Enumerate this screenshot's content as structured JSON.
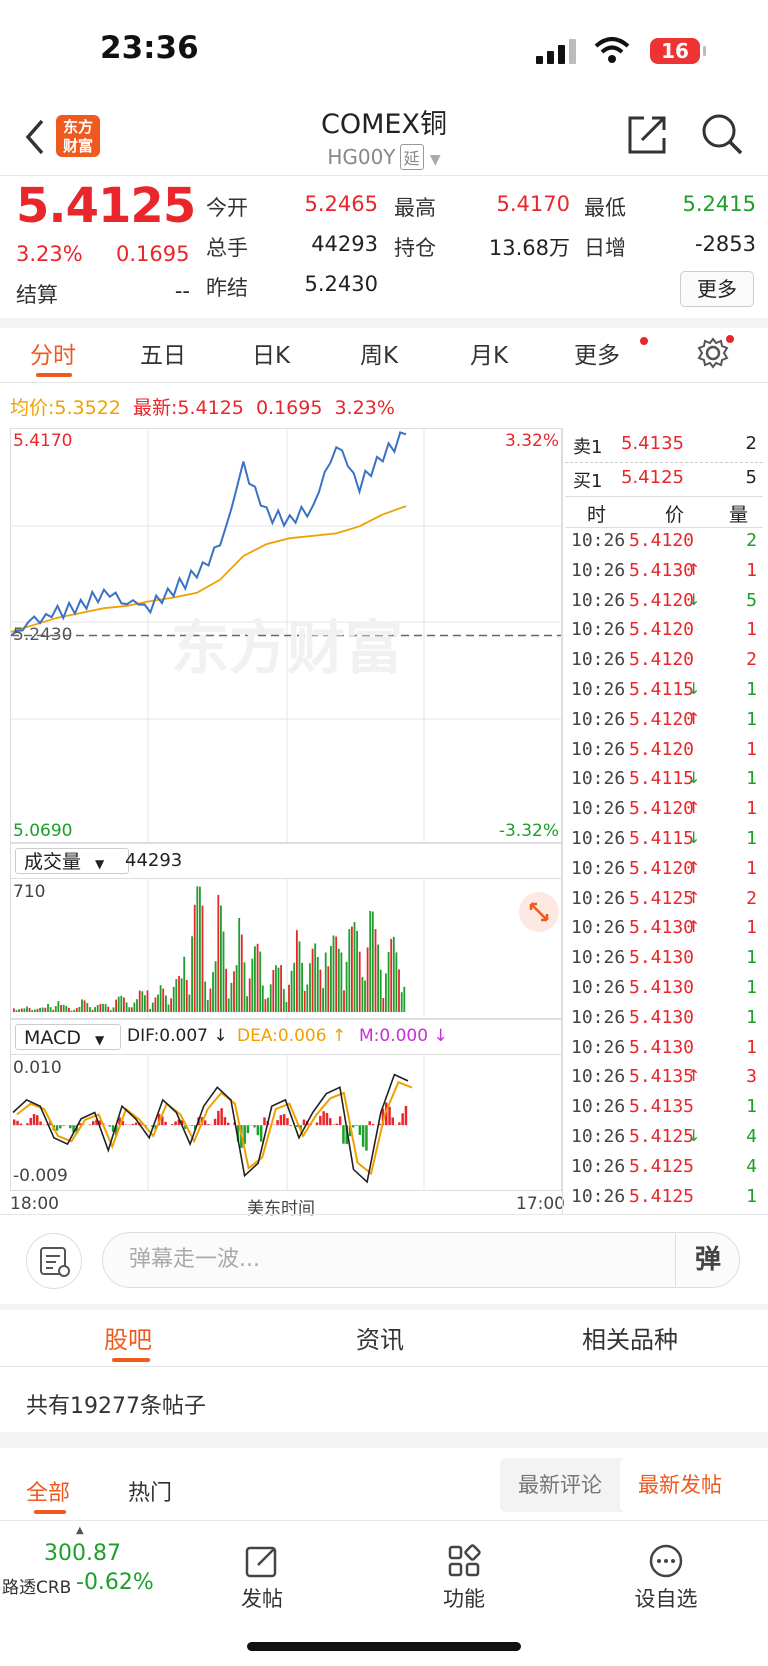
{
  "status": {
    "time": "23:36",
    "battery": "16"
  },
  "header": {
    "logo_line1": "东方",
    "logo_line2": "财富",
    "title": "COMEX铜",
    "code": "HG00Y",
    "tag": "延"
  },
  "quote": {
    "price": "5.4125",
    "change_pct": "3.23%",
    "change": "0.1695",
    "settle_label": "结算",
    "settle_value": "--",
    "fields": [
      {
        "label": "今开",
        "value": "5.2465",
        "color": "#e8262b"
      },
      {
        "label": "最高",
        "value": "5.4170",
        "color": "#e8262b"
      },
      {
        "label": "最低",
        "value": "5.2415",
        "color": "#1e9e2a"
      },
      {
        "label": "总手",
        "value": "44293",
        "color": "#222222"
      },
      {
        "label": "持仓",
        "value": "13.68万",
        "color": "#222222"
      },
      {
        "label": "日增",
        "value": "-2853",
        "color": "#222222"
      },
      {
        "label": "昨结",
        "value": "5.2430",
        "color": "#222222"
      }
    ],
    "more_label": "更多"
  },
  "tabs": [
    "分时",
    "五日",
    "日K",
    "周K",
    "月K",
    "更多"
  ],
  "infoline": {
    "avg_label": "均价:",
    "avg_value": "5.3522",
    "latest_label": "最新:",
    "latest_value": "5.4125",
    "latest_change": "0.1695",
    "latest_pct": "3.23%"
  },
  "price_chart": {
    "y_top": "5.4170",
    "y_bottom": "5.0690",
    "pct_top": "3.32%",
    "pct_bottom": "-3.32%",
    "prev_close": "5.2430",
    "watermark": "东方财富"
  },
  "volume_chart": {
    "selector": "成交量",
    "total": "44293",
    "max": "710"
  },
  "macd_chart": {
    "selector": "MACD",
    "dif": "DIF:0.007 ↓",
    "dea": "DEA:0.006 ↑",
    "m": "M:0.000 ↓",
    "y_top": "0.010",
    "y_bottom": "-0.009"
  },
  "time_axis": {
    "start": "18:00",
    "mid": "美东时间",
    "end": "17:00"
  },
  "orderbook": {
    "sell": {
      "label": "卖1",
      "price": "5.4135",
      "qty": "2"
    },
    "buy": {
      "label": "买1",
      "price": "5.4125",
      "qty": "5"
    },
    "headers": [
      "时",
      "价",
      "量"
    ]
  },
  "ticks": [
    {
      "t": "10:26",
      "p": "5.4120",
      "a": "",
      "q": "2",
      "qc": "#1e9e2a"
    },
    {
      "t": "10:26",
      "p": "5.4130",
      "a": "↑",
      "q": "1",
      "qc": "#e8262b"
    },
    {
      "t": "10:26",
      "p": "5.4120",
      "a": "↓",
      "q": "5",
      "qc": "#1e9e2a"
    },
    {
      "t": "10:26",
      "p": "5.4120",
      "a": "",
      "q": "1",
      "qc": "#e8262b"
    },
    {
      "t": "10:26",
      "p": "5.4120",
      "a": "",
      "q": "2",
      "qc": "#e8262b"
    },
    {
      "t": "10:26",
      "p": "5.4115",
      "a": "↓",
      "q": "1",
      "qc": "#1e9e2a"
    },
    {
      "t": "10:26",
      "p": "5.4120",
      "a": "↑",
      "q": "1",
      "qc": "#1e9e2a"
    },
    {
      "t": "10:26",
      "p": "5.4120",
      "a": "",
      "q": "1",
      "qc": "#e8262b"
    },
    {
      "t": "10:26",
      "p": "5.4115",
      "a": "↓",
      "q": "1",
      "qc": "#1e9e2a"
    },
    {
      "t": "10:26",
      "p": "5.4120",
      "a": "↑",
      "q": "1",
      "qc": "#e8262b"
    },
    {
      "t": "10:26",
      "p": "5.4115",
      "a": "↓",
      "q": "1",
      "qc": "#1e9e2a"
    },
    {
      "t": "10:26",
      "p": "5.4120",
      "a": "↑",
      "q": "1",
      "qc": "#e8262b"
    },
    {
      "t": "10:26",
      "p": "5.4125",
      "a": "↑",
      "q": "2",
      "qc": "#e8262b"
    },
    {
      "t": "10:26",
      "p": "5.4130",
      "a": "↑",
      "q": "1",
      "qc": "#e8262b"
    },
    {
      "t": "10:26",
      "p": "5.4130",
      "a": "",
      "q": "1",
      "qc": "#1e9e2a"
    },
    {
      "t": "10:26",
      "p": "5.4130",
      "a": "",
      "q": "1",
      "qc": "#1e9e2a"
    },
    {
      "t": "10:26",
      "p": "5.4130",
      "a": "",
      "q": "1",
      "qc": "#1e9e2a"
    },
    {
      "t": "10:26",
      "p": "5.4130",
      "a": "",
      "q": "1",
      "qc": "#e8262b"
    },
    {
      "t": "10:26",
      "p": "5.4135",
      "a": "↑",
      "q": "3",
      "qc": "#e8262b"
    },
    {
      "t": "10:26",
      "p": "5.4135",
      "a": "",
      "q": "1",
      "qc": "#1e9e2a"
    },
    {
      "t": "10:26",
      "p": "5.4125",
      "a": "↓",
      "q": "4",
      "qc": "#1e9e2a"
    },
    {
      "t": "10:26",
      "p": "5.4125",
      "a": "",
      "q": "4",
      "qc": "#1e9e2a"
    },
    {
      "t": "10:26",
      "p": "5.4125",
      "a": "",
      "q": "1",
      "qc": "#1e9e2a"
    }
  ],
  "comment": {
    "placeholder": "弹幕走一波...",
    "danmu_btn": "弹"
  },
  "sections": [
    "股吧",
    "资讯",
    "相关品种"
  ],
  "post_count": "共有19277条帖子",
  "sub_tabs": [
    "全部",
    "热门"
  ],
  "sort": [
    "最新评论",
    "最新发帖"
  ],
  "bottom_nav": {
    "index_value": "300.87",
    "index_name": "路透CRB",
    "index_change": "-0.62%",
    "items": [
      "发帖",
      "功能",
      "设自选"
    ]
  },
  "colors": {
    "up": "#e8262b",
    "down": "#1e9e2a",
    "accent": "#ef5a1f",
    "avg": "#f0a100",
    "price_line": "#3a72c4"
  },
  "chart_data": [
    {
      "type": "line",
      "series": [
        {
          "name": "均价",
          "values": [
            5.246,
            5.252,
            5.258,
            5.262,
            5.266,
            5.268,
            5.272,
            5.275,
            5.279,
            5.29,
            5.31,
            5.32,
            5.325,
            5.327,
            5.329,
            5.335,
            5.345,
            5.352
          ]
        },
        {
          "name": "最新",
          "values": [
            5.243,
            5.255,
            5.262,
            5.268,
            5.28,
            5.272,
            5.268,
            5.282,
            5.295,
            5.318,
            5.385,
            5.345,
            5.34,
            5.352,
            5.405,
            5.37,
            5.395,
            5.4125
          ]
        }
      ],
      "ylim": [
        5.069,
        5.417
      ],
      "reference": 5.243
    },
    {
      "type": "bar",
      "title": "成交量",
      "ylim": [
        0,
        710
      ],
      "values": [
        20,
        35,
        25,
        60,
        40,
        30,
        70,
        45,
        55,
        90,
        80,
        120,
        100,
        150,
        200,
        420,
        710,
        300,
        650,
        260,
        540,
        380,
        230,
        260,
        280,
        460,
        380,
        330,
        430,
        610,
        500,
        560,
        480,
        420,
        380
      ]
    },
    {
      "type": "bar",
      "title": "MACD",
      "ylim": [
        -0.009,
        0.01
      ],
      "values": [
        0.002,
        0.004,
        0.003,
        -0.002,
        -0.003,
        0.001,
        0.002,
        -0.004,
        0.003,
        0.001,
        -0.002,
        0.004,
        0.002,
        -0.003,
        0.003,
        0.006,
        0.004,
        -0.008,
        -0.006,
        0.003,
        0.004,
        -0.002,
        0.002,
        0.005,
        0.006,
        -0.007,
        -0.009,
        0.002,
        0.008,
        0.007
      ]
    }
  ]
}
